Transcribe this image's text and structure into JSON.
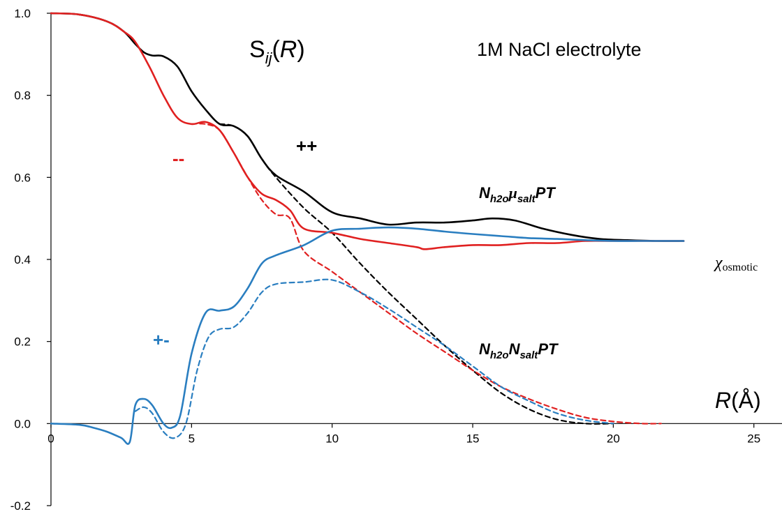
{
  "chart_data": {
    "type": "line",
    "xlim": [
      0,
      26
    ],
    "ylim": [
      -0.2,
      1.0
    ],
    "x_ticks": [
      "0",
      "5",
      "10",
      "15",
      "20",
      "25"
    ],
    "y_ticks": [
      "-0.2",
      "0.0",
      "0.2",
      "0.4",
      "0.6",
      "0.8",
      "1.0"
    ],
    "grid": false,
    "legend": "none",
    "annotations": {
      "title_s": "S",
      "title_sub": "ij",
      "title_open": "(",
      "title_r": "R",
      "title_close": ")",
      "electrolyte": "1M NaCl electrolyte",
      "chi": "χ",
      "chi_sub": "osmotic",
      "xlabel_r": "R",
      "xlabel_unit": "(Å)",
      "label_mu_n": "N",
      "label_mu_h2o": "h2o",
      "label_mu_mu": "μ",
      "label_mu_salt": "salt",
      "label_mu_pt": "PT",
      "label_n_n1": "N",
      "label_n_h2o": "h2o",
      "label_n_n2": "N",
      "label_n_salt": "salt",
      "label_n_pt": "PT",
      "plusplus": "++",
      "minusminus": "--",
      "plusminus": "+-"
    },
    "colors": {
      "plusplus": "#000000",
      "minusminus": "#e02020",
      "plusminus": "#2a7ec0"
    },
    "series": [
      {
        "key": "pp_solid",
        "color": "#000000",
        "dash": false,
        "x": [
          0,
          1,
          2,
          2.6,
          3,
          3.3,
          3.6,
          4,
          4.5,
          5,
          5.5,
          6,
          6.5,
          7,
          7.5,
          8,
          9,
          10,
          11,
          12,
          13,
          14,
          15,
          15.7,
          16.5,
          17.5,
          18.5,
          19.5,
          20.5,
          21.5,
          22.5
        ],
        "y": [
          1.0,
          0.997,
          0.98,
          0.955,
          0.925,
          0.905,
          0.897,
          0.895,
          0.87,
          0.81,
          0.765,
          0.73,
          0.725,
          0.7,
          0.645,
          0.605,
          0.565,
          0.515,
          0.5,
          0.485,
          0.49,
          0.49,
          0.495,
          0.5,
          0.495,
          0.475,
          0.46,
          0.45,
          0.447,
          0.445,
          0.445
        ]
      },
      {
        "key": "pp_dash",
        "color": "#000000",
        "dash": true,
        "x": [
          6,
          6.5,
          7,
          7.5,
          8,
          9,
          10,
          11,
          12,
          13,
          14,
          15,
          16,
          17,
          18,
          19,
          20
        ],
        "y": [
          0.73,
          0.725,
          0.7,
          0.645,
          0.6,
          0.525,
          0.465,
          0.39,
          0.32,
          0.255,
          0.19,
          0.13,
          0.075,
          0.035,
          0.01,
          0.0,
          0.0
        ]
      },
      {
        "key": "mm_solid",
        "color": "#e02020",
        "dash": false,
        "x": [
          0,
          1,
          2,
          2.6,
          3,
          3.5,
          4,
          4.5,
          5,
          5.5,
          6,
          6.5,
          7,
          7.5,
          8,
          8.5,
          9,
          10,
          11,
          12,
          13,
          13.3,
          14,
          15,
          16,
          17,
          18,
          19,
          20,
          21,
          22.5
        ],
        "y": [
          1.0,
          0.997,
          0.98,
          0.955,
          0.93,
          0.87,
          0.8,
          0.745,
          0.73,
          0.735,
          0.715,
          0.66,
          0.6,
          0.56,
          0.545,
          0.52,
          0.475,
          0.465,
          0.45,
          0.44,
          0.43,
          0.425,
          0.43,
          0.435,
          0.435,
          0.44,
          0.44,
          0.445,
          0.445,
          0.445,
          0.445
        ]
      },
      {
        "key": "mm_dash",
        "color": "#e02020",
        "dash": true,
        "x": [
          5,
          5.5,
          6,
          6.5,
          7,
          7.5,
          8,
          8.5,
          9,
          10,
          11,
          12,
          13,
          14,
          15,
          16,
          17,
          18,
          19,
          20,
          21,
          21.7
        ],
        "y": [
          0.73,
          0.73,
          0.715,
          0.66,
          0.6,
          0.545,
          0.51,
          0.5,
          0.42,
          0.37,
          0.32,
          0.27,
          0.22,
          0.175,
          0.13,
          0.09,
          0.06,
          0.035,
          0.015,
          0.005,
          0.0,
          0.0
        ]
      },
      {
        "key": "pm_solid",
        "color": "#2a7ec0",
        "dash": false,
        "x": [
          0,
          1,
          1.5,
          2,
          2.5,
          2.8,
          3,
          3.3,
          3.6,
          4,
          4.3,
          4.6,
          5,
          5.5,
          6,
          6.5,
          7,
          7.5,
          8,
          9,
          10,
          11,
          12,
          13,
          14,
          15,
          16,
          17,
          18,
          19,
          20,
          21,
          22.5
        ],
        "y": [
          0.0,
          -0.003,
          -0.01,
          -0.02,
          -0.035,
          -0.045,
          0.045,
          0.06,
          0.045,
          0.0,
          -0.01,
          0.02,
          0.17,
          0.27,
          0.275,
          0.285,
          0.33,
          0.39,
          0.41,
          0.435,
          0.47,
          0.475,
          0.478,
          0.475,
          0.468,
          0.462,
          0.457,
          0.452,
          0.45,
          0.447,
          0.445,
          0.445,
          0.445
        ]
      },
      {
        "key": "pm_dash",
        "color": "#2a7ec0",
        "dash": true,
        "x": [
          3,
          3.3,
          3.6,
          4,
          4.4,
          4.8,
          5.2,
          5.6,
          6,
          6.5,
          7,
          7.5,
          8,
          9,
          10,
          11,
          12,
          13,
          14,
          15,
          16,
          17,
          18,
          19,
          20
        ],
        "y": [
          0.03,
          0.04,
          0.025,
          -0.02,
          -0.035,
          0.0,
          0.13,
          0.21,
          0.23,
          0.235,
          0.27,
          0.32,
          0.34,
          0.345,
          0.35,
          0.32,
          0.28,
          0.235,
          0.19,
          0.14,
          0.09,
          0.055,
          0.025,
          0.008,
          0.0
        ]
      }
    ]
  }
}
